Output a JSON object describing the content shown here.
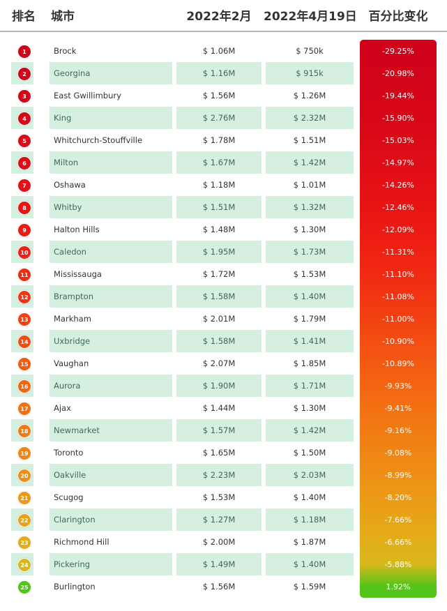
{
  "header": {
    "rank": "排名",
    "city": "城市",
    "col_feb": "2022年2月",
    "col_apr": "2022年4月19日",
    "col_change": "百分比变化"
  },
  "chart_data": {
    "type": "table",
    "columns": [
      "排名",
      "城市",
      "2022年2月",
      "2022年4月19日",
      "百分比变化"
    ],
    "rows": [
      {
        "rank": "1",
        "city": "Brock",
        "feb": "$ 1.06M",
        "apr": "$ 750k",
        "change": "-29.25%",
        "change_value": -29.25,
        "color": "#d0021b"
      },
      {
        "rank": "2",
        "city": "Georgina",
        "feb": "$ 1.16M",
        "apr": "$ 915k",
        "change": "-20.98%",
        "change_value": -20.98,
        "color": "#d3031a"
      },
      {
        "rank": "3",
        "city": "East Gwillimbury",
        "feb": "$ 1.56M",
        "apr": "$ 1.26M",
        "change": "-19.44%",
        "change_value": -19.44,
        "color": "#d50519"
      },
      {
        "rank": "4",
        "city": "King",
        "feb": "$ 2.76M",
        "apr": "$ 2.32M",
        "change": "-15.90%",
        "change_value": -15.9,
        "color": "#d80718"
      },
      {
        "rank": "5",
        "city": "Whitchurch-Stouffville",
        "feb": "$ 1.78M",
        "apr": "$ 1.51M",
        "change": "-15.03%",
        "change_value": -15.03,
        "color": "#db0a17"
      },
      {
        "rank": "6",
        "city": "Milton",
        "feb": "$ 1.67M",
        "apr": "$ 1.42M",
        "change": "-14.97%",
        "change_value": -14.97,
        "color": "#df0d16"
      },
      {
        "rank": "7",
        "city": "Oshawa",
        "feb": "$ 1.18M",
        "apr": "$ 1.01M",
        "change": "-14.26%",
        "change_value": -14.26,
        "color": "#e41015"
      },
      {
        "rank": "8",
        "city": "Whitby",
        "feb": "$ 1.51M",
        "apr": "$ 1.32M",
        "change": "-12.46%",
        "change_value": -12.46,
        "color": "#e81414"
      },
      {
        "rank": "9",
        "city": "Halton Hills",
        "feb": "$ 1.48M",
        "apr": "$ 1.30M",
        "change": "-12.09%",
        "change_value": -12.09,
        "color": "#ec1a13"
      },
      {
        "rank": "10",
        "city": "Caledon",
        "feb": "$ 1.95M",
        "apr": "$ 1.73M",
        "change": "-11.31%",
        "change_value": -11.31,
        "color": "#ef2112"
      },
      {
        "rank": "11",
        "city": "Mississauga",
        "feb": "$ 1.72M",
        "apr": "$ 1.53M",
        "change": "-11.10%",
        "change_value": -11.1,
        "color": "#f12a12"
      },
      {
        "rank": "12",
        "city": "Brampton",
        "feb": "$ 1.58M",
        "apr": "$ 1.40M",
        "change": "-11.08%",
        "change_value": -11.08,
        "color": "#f23512"
      },
      {
        "rank": "13",
        "city": "Markham",
        "feb": "$ 2.01M",
        "apr": "$ 1.79M",
        "change": "-11.00%",
        "change_value": -11.0,
        "color": "#f34112"
      },
      {
        "rank": "14",
        "city": "Uxbridge",
        "feb": "$ 1.58M",
        "apr": "$ 1.41M",
        "change": "-10.90%",
        "change_value": -10.9,
        "color": "#f44d12"
      },
      {
        "rank": "15",
        "city": "Vaughan",
        "feb": "$ 2.07M",
        "apr": "$ 1.85M",
        "change": "-10.89%",
        "change_value": -10.89,
        "color": "#f45912"
      },
      {
        "rank": "16",
        "city": "Aurora",
        "feb": "$ 1.90M",
        "apr": "$ 1.71M",
        "change": "-9.93%",
        "change_value": -9.93,
        "color": "#f46512"
      },
      {
        "rank": "17",
        "city": "Ajax",
        "feb": "$ 1.44M",
        "apr": "$ 1.30M",
        "change": "-9.41%",
        "change_value": -9.41,
        "color": "#f37013"
      },
      {
        "rank": "18",
        "city": "Newmarket",
        "feb": "$ 1.57M",
        "apr": "$ 1.42M",
        "change": "-9.16%",
        "change_value": -9.16,
        "color": "#f27b13"
      },
      {
        "rank": "19",
        "city": "Toronto",
        "feb": "$ 1.65M",
        "apr": "$ 1.50M",
        "change": "-9.08%",
        "change_value": -9.08,
        "color": "#f08514"
      },
      {
        "rank": "20",
        "city": "Oakville",
        "feb": "$ 2.23M",
        "apr": "$ 2.03M",
        "change": "-8.99%",
        "change_value": -8.99,
        "color": "#ee8f15"
      },
      {
        "rank": "21",
        "city": "Scugog",
        "feb": "$ 1.53M",
        "apr": "$ 1.40M",
        "change": "-8.20%",
        "change_value": -8.2,
        "color": "#eb9a16"
      },
      {
        "rank": "22",
        "city": "Clarington",
        "feb": "$ 1.27M",
        "apr": "$ 1.18M",
        "change": "-7.66%",
        "change_value": -7.66,
        "color": "#e7a417"
      },
      {
        "rank": "23",
        "city": "Richmond Hill",
        "feb": "$ 2.00M",
        "apr": "$ 1.87M",
        "change": "-6.66%",
        "change_value": -6.66,
        "color": "#e2ae18"
      },
      {
        "rank": "24",
        "city": "Pickering",
        "feb": "$ 1.49M",
        "apr": "$ 1.40M",
        "change": "-5.88%",
        "change_value": -5.88,
        "color": "#d8b81a"
      },
      {
        "rank": "25",
        "city": "Burlington",
        "feb": "$ 1.56M",
        "apr": "$ 1.59M",
        "change": "1.92%",
        "change_value": 1.92,
        "color": "#52c41a"
      }
    ]
  }
}
